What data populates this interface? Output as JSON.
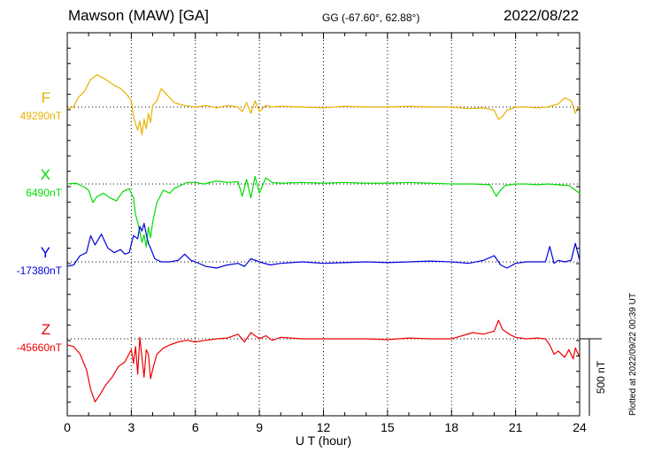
{
  "header": {
    "title": "Mawson (MAW)  [GA]",
    "coordinates": "GG (-67.60°,  62.88°)",
    "date": "2022/08/22"
  },
  "footer_note": "Plotted at 2022/09/22 00:39 UT",
  "chart_data": {
    "type": "line",
    "title": "Mawson (MAW)  [GA]",
    "xlabel": "U T (hour)",
    "xlim": [
      0,
      24
    ],
    "x_ticks": [
      "0",
      "3",
      "6",
      "9",
      "12",
      "15",
      "18",
      "21",
      "24"
    ],
    "scale_bar": {
      "label": "500 nT",
      "value_nT": 500
    },
    "grid": true,
    "series": [
      {
        "name": "F",
        "baseline_label": "49290nT",
        "baseline_nT": 49290,
        "color": "#e8b100",
        "x": [
          0,
          0.3,
          0.5,
          0.8,
          1.1,
          1.4,
          1.8,
          2.1,
          2.5,
          2.8,
          3.0,
          3.1,
          3.2,
          3.3,
          3.4,
          3.5,
          3.6,
          3.7,
          3.8,
          3.9,
          4.0,
          4.2,
          4.4,
          4.6,
          4.8,
          5.0,
          5.2,
          5.5,
          6.0,
          6.5,
          7.0,
          7.5,
          8.0,
          8.2,
          8.4,
          8.6,
          8.8,
          9.0,
          9.3,
          9.6,
          10.0,
          11.0,
          12.0,
          13.0,
          14.0,
          15.0,
          16.0,
          17.0,
          18.0,
          18.8,
          19.5,
          20.0,
          20.2,
          20.4,
          20.6,
          21.0,
          21.5,
          22.0,
          22.5,
          23.0,
          23.3,
          23.6,
          23.8,
          24.0
        ],
        "values": [
          -10,
          0,
          60,
          100,
          180,
          210,
          180,
          150,
          120,
          80,
          40,
          -60,
          -110,
          -150,
          -90,
          -180,
          -80,
          -140,
          -40,
          -100,
          10,
          40,
          120,
          90,
          60,
          30,
          20,
          10,
          0,
          10,
          -5,
          10,
          0,
          -30,
          30,
          -40,
          40,
          -30,
          10,
          0,
          5,
          0,
          -5,
          5,
          0,
          0,
          5,
          0,
          0,
          -10,
          -5,
          -20,
          -80,
          -60,
          -20,
          0,
          0,
          -5,
          0,
          20,
          60,
          40,
          -40,
          10
        ]
      },
      {
        "name": "X",
        "baseline_label": "6490nT",
        "baseline_nT": 6490,
        "color": "#00dd00",
        "x": [
          0,
          0.4,
          0.8,
          1.0,
          1.2,
          1.4,
          1.7,
          2.0,
          2.3,
          2.6,
          2.9,
          3.1,
          3.2,
          3.3,
          3.4,
          3.5,
          3.6,
          3.7,
          3.8,
          3.9,
          4.0,
          4.2,
          4.5,
          4.8,
          5.0,
          5.3,
          5.6,
          6.0,
          6.4,
          7.0,
          7.5,
          8.0,
          8.2,
          8.4,
          8.6,
          8.8,
          9.0,
          9.3,
          9.6,
          10.0,
          11.0,
          12.0,
          13.0,
          14.0,
          15.0,
          16.0,
          17.0,
          18.0,
          19.0,
          19.8,
          20.1,
          20.3,
          20.5,
          21.0,
          21.5,
          22.0,
          22.5,
          23.0,
          23.5,
          24.0
        ],
        "values": [
          0,
          5,
          -20,
          -40,
          -120,
          -80,
          -60,
          -90,
          -110,
          -50,
          -30,
          -90,
          -200,
          -250,
          -310,
          -380,
          -330,
          -410,
          -280,
          -350,
          -250,
          -120,
          -40,
          -60,
          -30,
          -10,
          10,
          10,
          0,
          20,
          10,
          15,
          -80,
          30,
          -90,
          50,
          -60,
          40,
          10,
          5,
          10,
          5,
          10,
          5,
          5,
          10,
          5,
          0,
          0,
          -5,
          -80,
          -40,
          -10,
          0,
          0,
          -5,
          0,
          -5,
          -10,
          -60
        ]
      },
      {
        "name": "Y",
        "baseline_label": "-17380nT",
        "baseline_nT": -17380,
        "color": "#0000dd",
        "x": [
          0,
          0.3,
          0.6,
          0.9,
          1.1,
          1.3,
          1.6,
          1.9,
          2.2,
          2.5,
          2.7,
          2.9,
          3.1,
          3.3,
          3.4,
          3.5,
          3.6,
          3.7,
          3.8,
          3.9,
          4.1,
          4.4,
          4.8,
          5.2,
          5.5,
          5.8,
          6.0,
          6.5,
          7.0,
          7.5,
          8.0,
          8.3,
          8.6,
          9.0,
          9.5,
          10.0,
          11.0,
          12.0,
          13.0,
          14.0,
          15.0,
          16.0,
          17.0,
          18.0,
          18.8,
          19.5,
          20.0,
          20.3,
          20.6,
          21.0,
          21.5,
          22.0,
          22.4,
          22.6,
          22.8,
          23.0,
          23.3,
          23.6,
          23.8,
          24.0
        ],
        "values": [
          -30,
          -20,
          40,
          60,
          170,
          110,
          180,
          90,
          60,
          80,
          50,
          60,
          170,
          150,
          230,
          200,
          250,
          180,
          120,
          90,
          20,
          0,
          0,
          10,
          50,
          10,
          0,
          -30,
          -40,
          -20,
          -10,
          -30,
          20,
          0,
          -20,
          -10,
          0,
          -10,
          -5,
          0,
          -5,
          0,
          5,
          0,
          -10,
          10,
          40,
          -20,
          -40,
          -10,
          0,
          0,
          0,
          100,
          -10,
          10,
          0,
          10,
          120,
          10
        ]
      },
      {
        "name": "Z",
        "baseline_label": "-45660nT",
        "baseline_nT": -45660,
        "color": "#ee0000",
        "x": [
          0,
          0.3,
          0.6,
          0.9,
          1.1,
          1.3,
          1.5,
          1.8,
          2.1,
          2.4,
          2.7,
          3.0,
          3.1,
          3.2,
          3.3,
          3.4,
          3.5,
          3.6,
          3.7,
          3.8,
          3.9,
          4.0,
          4.2,
          4.5,
          4.8,
          5.2,
          5.6,
          6.0,
          6.5,
          7.0,
          7.5,
          8.0,
          8.3,
          8.6,
          9.0,
          9.3,
          9.6,
          10.0,
          11.0,
          12.0,
          13.0,
          14.0,
          15.0,
          16.0,
          17.0,
          18.0,
          18.5,
          19.0,
          19.5,
          20.0,
          20.2,
          20.4,
          20.7,
          21.0,
          21.5,
          22.0,
          22.4,
          22.6,
          22.8,
          23.0,
          23.3,
          23.5,
          23.7,
          23.8,
          24.0
        ],
        "values": [
          -40,
          -50,
          -100,
          -200,
          -330,
          -410,
          -370,
          -300,
          -250,
          -180,
          -150,
          -70,
          -160,
          -50,
          -230,
          10,
          -120,
          -250,
          -70,
          -100,
          -260,
          -200,
          -100,
          -60,
          -40,
          -20,
          -10,
          -20,
          -10,
          0,
          5,
          30,
          -20,
          40,
          0,
          20,
          -10,
          10,
          0,
          0,
          0,
          0,
          -5,
          5,
          0,
          0,
          20,
          40,
          30,
          50,
          120,
          60,
          30,
          10,
          0,
          5,
          0,
          -40,
          -100,
          -80,
          -120,
          -70,
          -130,
          -60,
          -120
        ]
      }
    ]
  }
}
